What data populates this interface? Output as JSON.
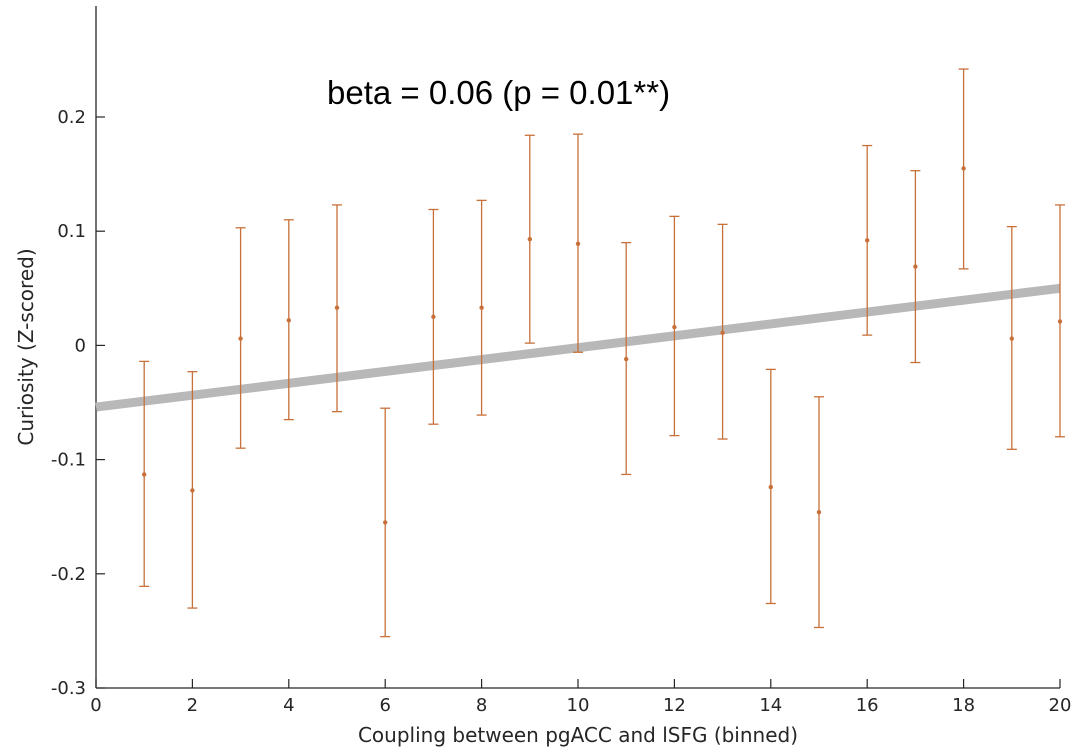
{
  "chart_data": {
    "type": "scatter",
    "title": "",
    "annotation": "beta = 0.06 (p = 0.01**)",
    "xlabel": "Coupling between pgACC and lSFG (binned)",
    "ylabel": "Curiosity (Z-scored)",
    "xlim": [
      0,
      20
    ],
    "ylim": [
      -0.3,
      0.3
    ],
    "xticks": [
      0,
      2,
      4,
      6,
      8,
      10,
      12,
      14,
      16,
      18,
      20
    ],
    "xtick_labels": [
      "0",
      "2",
      "4",
      "6",
      "8",
      "10",
      "12",
      "14",
      "16",
      "18",
      "20"
    ],
    "yticks": [
      -0.3,
      -0.2,
      -0.1,
      0,
      0.1,
      0.2
    ],
    "ytick_labels": [
      "-0.3",
      "-0.2",
      "-0.1",
      "0",
      "0.1",
      "0.2"
    ],
    "grid": false,
    "series": [
      {
        "kind": "errorbar",
        "color": "#c8703a",
        "x": [
          1,
          2,
          3,
          4,
          5,
          6,
          7,
          8,
          9,
          10,
          11,
          12,
          13,
          14,
          15,
          16,
          17,
          18,
          19,
          20
        ],
        "y": [
          -0.113,
          -0.127,
          0.006,
          0.022,
          0.033,
          -0.155,
          0.025,
          0.033,
          0.093,
          0.089,
          -0.012,
          0.016,
          0.011,
          -0.124,
          -0.146,
          0.092,
          0.069,
          0.155,
          0.006,
          0.021
        ],
        "lower": [
          -0.211,
          -0.23,
          -0.09,
          -0.065,
          -0.058,
          -0.255,
          -0.069,
          -0.061,
          0.002,
          -0.006,
          -0.113,
          -0.079,
          -0.082,
          -0.226,
          -0.247,
          0.009,
          -0.015,
          0.067,
          -0.091,
          -0.08
        ],
        "upper": [
          -0.014,
          -0.023,
          0.103,
          0.11,
          0.123,
          -0.055,
          0.119,
          0.127,
          0.184,
          0.185,
          0.09,
          0.113,
          0.106,
          -0.021,
          -0.045,
          0.175,
          0.153,
          0.242,
          0.104,
          0.123
        ]
      },
      {
        "kind": "fit-line",
        "color": "#b8b8b8",
        "x": [
          0,
          20
        ],
        "y": [
          -0.054,
          0.05
        ]
      }
    ]
  }
}
